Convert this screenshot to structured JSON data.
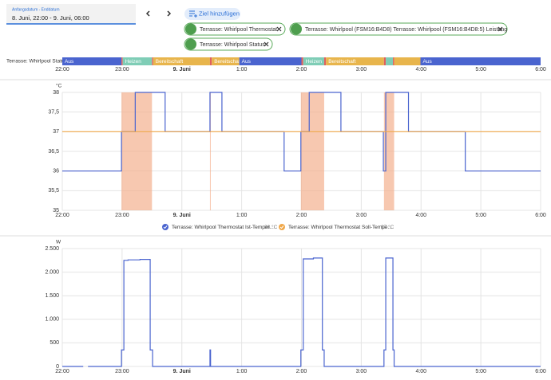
{
  "header": {
    "date_label": "Anfangsdatum - Enddatum",
    "date_value": "8. Juni, 22:00 - 9. Juni, 06:00",
    "add_target": "Ziel hinzufügen",
    "chips": [
      "Terrasse: Whirlpool Thermostat",
      "Terrasse: Whirlpool (FSM16:B4D8) Terrasse: Whirlpool (FSM16:B4D8:5) Leistung",
      "Terrasse: Whirlpool Status"
    ]
  },
  "x_axis": {
    "xlim": [
      22,
      30
    ],
    "xticks": [
      {
        "value": 22,
        "label": "22:00"
      },
      {
        "value": 23,
        "label": "23:00"
      },
      {
        "value": 24,
        "label": "9. Juni",
        "bold": true
      },
      {
        "value": 25,
        "label": "1:00"
      },
      {
        "value": 26,
        "label": "2:00"
      },
      {
        "value": 27,
        "label": "3:00"
      },
      {
        "value": 28,
        "label": "4:00"
      },
      {
        "value": 29,
        "label": "5:00"
      },
      {
        "value": 30,
        "label": "6:00"
      }
    ]
  },
  "timeline": {
    "label": "Terrasse: Whirlpool Status",
    "segments": [
      {
        "state": "Aus",
        "color": "#4a64cf",
        "start": 22,
        "end": 22.99
      },
      {
        "state": null,
        "color": "#e0605e",
        "start": 22.99,
        "end": 23.01
      },
      {
        "state": "Heizen",
        "color": "#7fcdb6",
        "start": 23.01,
        "end": 23.5
      },
      {
        "state": null,
        "color": "#e0605e",
        "start": 23.5,
        "end": 23.52
      },
      {
        "state": "Bereitschaft",
        "color": "#e8b54c",
        "start": 23.52,
        "end": 24.47
      },
      {
        "state": null,
        "color": "#e0605e",
        "start": 24.47,
        "end": 24.5
      },
      {
        "state": "Bereitschaft",
        "color": "#e8b54c",
        "start": 24.5,
        "end": 24.96
      },
      {
        "state": "Aus",
        "color": "#4a64cf",
        "start": 24.96,
        "end": 26.0
      },
      {
        "state": null,
        "color": "#e0605e",
        "start": 26.0,
        "end": 26.03
      },
      {
        "state": "Heizen",
        "color": "#7fcdb6",
        "start": 26.03,
        "end": 26.38
      },
      {
        "state": null,
        "color": "#e0605e",
        "start": 26.38,
        "end": 26.41
      },
      {
        "state": "Bereitschaft",
        "color": "#e8b54c",
        "start": 26.41,
        "end": 27.38
      },
      {
        "state": null,
        "color": "#e0605e",
        "start": 27.38,
        "end": 27.41
      },
      {
        "state": null,
        "color": "#7fcdb6",
        "start": 27.41,
        "end": 27.53
      },
      {
        "state": null,
        "color": "#e0605e",
        "start": 27.53,
        "end": 27.55
      },
      {
        "state": null,
        "color": "#e8b54c",
        "start": 27.55,
        "end": 27.99
      },
      {
        "state": "Aus",
        "color": "#4a64cf",
        "start": 27.99,
        "end": 30
      }
    ]
  },
  "charts": [
    {
      "type": "line",
      "y_label": "°C",
      "step": true,
      "grid": true,
      "ylim": [
        35,
        38
      ],
      "yticks": [
        35,
        {
          "value": 35.5,
          "label": "35,5"
        },
        36,
        {
          "value": 36.5,
          "label": "36,5"
        },
        37,
        {
          "value": 37.5,
          "label": "37,5"
        },
        38
      ],
      "shaded": {
        "color": "#f4b08f",
        "periods": [
          [
            22.99,
            23.5
          ],
          [
            24.47,
            24.48
          ],
          [
            25.99,
            26.38
          ],
          [
            27.38,
            27.55
          ]
        ]
      },
      "series": [
        {
          "name": "Terrasse: Whirlpool Thermostat Ist-Temper...",
          "current": "36 °C",
          "color": "#4a64cf",
          "x": [
            22,
            22.99,
            23.22,
            23.72,
            24.47,
            24.67,
            25.71,
            25.99,
            26.13,
            26.66,
            27.37,
            27.41,
            27.79,
            28.74,
            30
          ],
          "values": [
            36,
            37,
            38,
            37,
            38,
            37,
            36,
            37,
            38,
            37,
            36,
            38,
            37,
            36,
            36
          ]
        },
        {
          "name": "Terrasse: Whirlpool Thermostat Soll-Tempe...",
          "current": "37 °C",
          "color": "#f0a84a",
          "x": [
            22,
            30
          ],
          "values": [
            37,
            37
          ]
        }
      ]
    },
    {
      "type": "line",
      "y_label": "W",
      "step": true,
      "grid": true,
      "ylim": [
        0,
        2500
      ],
      "yticks": [
        0,
        500,
        {
          "value": 1000,
          "label": "1.000"
        },
        {
          "value": 1500,
          "label": "1.500"
        },
        {
          "value": 2000,
          "label": "2.000"
        },
        {
          "value": 2500,
          "label": "2.500"
        }
      ],
      "series": [
        {
          "color": "#4a64cf",
          "x": [
            22,
            22.35,
            22.38,
            22.43,
            22.99,
            23.03,
            23.1,
            23.3,
            23.47,
            23.51,
            24.46,
            24.47,
            24.48,
            25.99,
            26.03,
            26.2,
            26.35,
            26.38,
            27.38,
            27.41,
            27.53,
            27.55,
            30
          ],
          "values": [
            0,
            0,
            null,
            0,
            350,
            2250,
            2260,
            2270,
            350,
            0,
            0,
            350,
            0,
            350,
            2280,
            2300,
            350,
            0,
            350,
            2300,
            350,
            0,
            0
          ]
        }
      ]
    }
  ]
}
